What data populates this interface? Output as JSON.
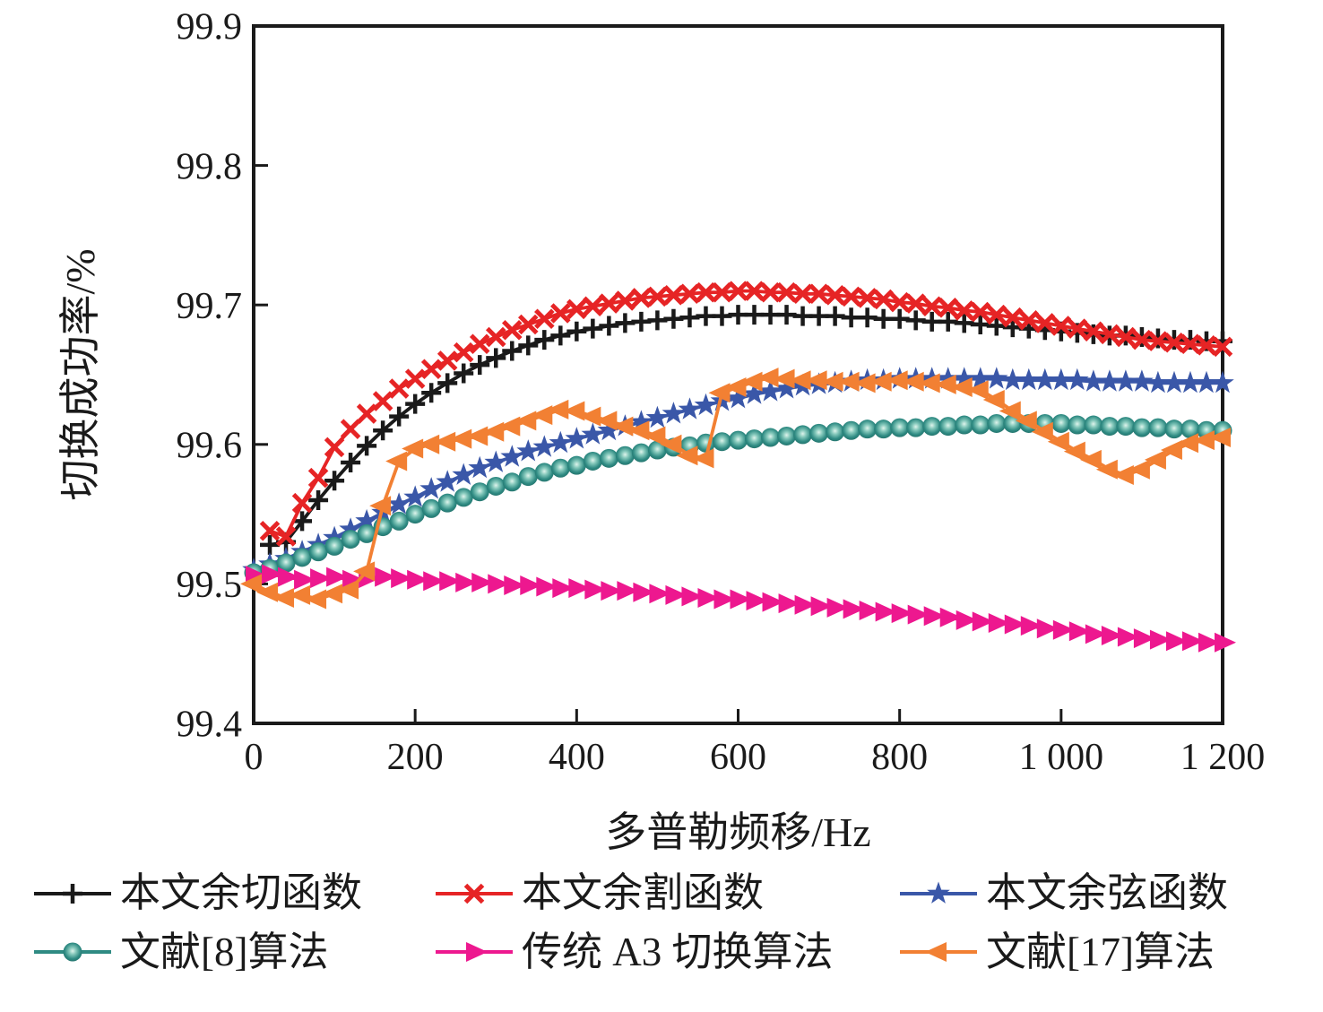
{
  "chart_data": {
    "type": "line",
    "title": "",
    "xlabel": "多普勒频移/Hz",
    "ylabel": "切换成功率/%",
    "xlim": [
      0,
      1200
    ],
    "ylim": [
      99.4,
      99.9
    ],
    "grid": false,
    "legend_position": "bottom",
    "x_ticks": [
      {
        "v": 0,
        "label": "0"
      },
      {
        "v": 200,
        "label": "200"
      },
      {
        "v": 400,
        "label": "400"
      },
      {
        "v": 600,
        "label": "600"
      },
      {
        "v": 800,
        "label": "800"
      },
      {
        "v": 1000,
        "label": "1 000"
      },
      {
        "v": 1200,
        "label": "1 200"
      }
    ],
    "y_ticks": [
      {
        "v": 99.4,
        "label": "99.4"
      },
      {
        "v": 99.5,
        "label": "99.5"
      },
      {
        "v": 99.6,
        "label": "99.6"
      },
      {
        "v": 99.7,
        "label": "99.7"
      },
      {
        "v": 99.8,
        "label": "99.8"
      },
      {
        "v": 99.9,
        "label": "99.9"
      }
    ],
    "x_step": 20,
    "series": [
      {
        "name": "本文余切函数",
        "color": "#1a1a1a",
        "marker": "plus",
        "x_start": 20,
        "values": [
          99.528,
          99.53,
          99.545,
          99.56,
          99.574,
          99.587,
          99.599,
          99.61,
          99.62,
          99.629,
          99.637,
          99.644,
          99.651,
          99.657,
          99.662,
          99.667,
          99.671,
          99.675,
          99.678,
          99.681,
          99.683,
          99.685,
          99.687,
          99.688,
          99.689,
          99.69,
          99.691,
          99.692,
          99.692,
          99.693,
          99.693,
          99.693,
          99.693,
          99.692,
          99.692,
          99.692,
          99.691,
          99.691,
          99.69,
          99.69,
          99.689,
          99.688,
          99.688,
          99.687,
          99.686,
          99.685,
          99.684,
          99.683,
          99.682,
          99.681,
          99.68,
          99.679,
          99.678,
          99.678,
          99.677,
          99.676,
          99.675,
          99.675,
          99.674,
          99.674
        ]
      },
      {
        "name": "本文余割函数",
        "color": "#e62425",
        "marker": "x",
        "x_start": 20,
        "values": [
          99.538,
          99.534,
          99.558,
          99.576,
          99.598,
          99.611,
          99.622,
          99.631,
          99.64,
          99.647,
          99.654,
          99.66,
          99.666,
          99.672,
          99.677,
          99.682,
          99.686,
          99.69,
          99.694,
          99.697,
          99.699,
          99.701,
          99.703,
          99.705,
          99.706,
          99.707,
          99.708,
          99.709,
          99.709,
          99.71,
          99.71,
          99.709,
          99.709,
          99.708,
          99.708,
          99.707,
          99.706,
          99.705,
          99.704,
          99.702,
          99.701,
          99.699,
          99.698,
          99.696,
          99.695,
          99.693,
          99.691,
          99.689,
          99.687,
          99.685,
          99.683,
          99.681,
          99.679,
          99.677,
          99.675,
          99.674,
          99.673,
          99.672,
          99.671,
          99.67
        ]
      },
      {
        "name": "本文余弦函数",
        "color": "#3a57a8",
        "marker": "star",
        "x_start": 0,
        "values": [
          99.51,
          99.514,
          99.518,
          99.523,
          99.528,
          99.533,
          99.539,
          99.545,
          99.551,
          99.557,
          99.562,
          99.568,
          99.573,
          99.578,
          99.583,
          99.587,
          99.591,
          99.595,
          99.598,
          99.601,
          99.604,
          99.607,
          99.61,
          99.613,
          99.616,
          99.619,
          99.622,
          99.625,
          99.628,
          99.631,
          99.633,
          99.636,
          99.638,
          99.64,
          99.642,
          99.643,
          99.644,
          99.645,
          99.646,
          99.646,
          99.647,
          99.647,
          99.647,
          99.647,
          99.647,
          99.647,
          99.647,
          99.646,
          99.646,
          99.646,
          99.646,
          99.646,
          99.645,
          99.645,
          99.645,
          99.645,
          99.644,
          99.644,
          99.644,
          99.644,
          99.644
        ]
      },
      {
        "name": "文献[8]算法",
        "color": "#2f8b83",
        "marker": "circle",
        "x_start": 0,
        "values": [
          99.508,
          99.511,
          99.515,
          99.519,
          99.523,
          99.527,
          99.532,
          99.536,
          99.541,
          99.545,
          99.55,
          99.554,
          99.558,
          99.562,
          99.566,
          99.57,
          99.573,
          99.577,
          99.58,
          99.583,
          99.585,
          99.588,
          99.59,
          99.592,
          99.594,
          99.596,
          99.598,
          99.599,
          99.601,
          99.602,
          99.603,
          99.604,
          99.605,
          99.606,
          99.607,
          99.608,
          99.609,
          99.61,
          99.611,
          99.611,
          99.612,
          99.612,
          99.613,
          99.613,
          99.614,
          99.614,
          99.615,
          99.615,
          99.615,
          99.615,
          99.615,
          99.614,
          99.614,
          99.613,
          99.613,
          99.612,
          99.612,
          99.611,
          99.611,
          99.61,
          99.61
        ]
      },
      {
        "name": "传统 A3 切换算法",
        "color": "#ed188f",
        "marker": "triangle-right",
        "x_start": 0,
        "values": [
          99.506,
          99.507,
          99.505,
          99.503,
          99.504,
          99.505,
          99.503,
          99.504,
          99.505,
          99.504,
          99.503,
          99.502,
          99.502,
          99.501,
          99.501,
          99.5,
          99.499,
          99.499,
          99.498,
          99.497,
          99.497,
          99.496,
          99.495,
          99.495,
          99.494,
          99.493,
          99.492,
          99.491,
          99.49,
          99.489,
          99.489,
          99.488,
          99.487,
          99.486,
          99.485,
          99.484,
          99.483,
          99.482,
          99.481,
          99.48,
          99.479,
          99.478,
          99.477,
          99.476,
          99.474,
          99.473,
          99.472,
          99.471,
          99.47,
          99.468,
          99.467,
          99.466,
          99.464,
          99.463,
          99.462,
          99.461,
          99.46,
          99.459,
          99.459,
          99.458,
          99.458
        ]
      },
      {
        "name": "文献[17]算法",
        "color": "#f28033",
        "marker": "triangle-left",
        "x_start": 0,
        "values": [
          99.5,
          99.494,
          99.49,
          99.492,
          99.489,
          99.493,
          99.496,
          99.509,
          99.556,
          99.588,
          99.597,
          99.6,
          99.602,
          99.604,
          99.606,
          99.609,
          99.613,
          99.617,
          99.621,
          99.625,
          99.624,
          99.62,
          99.617,
          99.613,
          99.61,
          99.606,
          99.6,
          99.592,
          99.59,
          99.637,
          99.641,
          99.645,
          99.648,
          99.647,
          99.646,
          99.646,
          99.645,
          99.645,
          99.644,
          99.645,
          99.646,
          99.645,
          99.644,
          99.643,
          99.641,
          99.639,
          99.632,
          99.624,
          99.617,
          99.609,
          99.602,
          99.595,
          99.589,
          99.582,
          99.578,
          99.582,
          99.589,
          99.596,
          99.601,
          99.603,
          99.605
        ]
      }
    ]
  }
}
